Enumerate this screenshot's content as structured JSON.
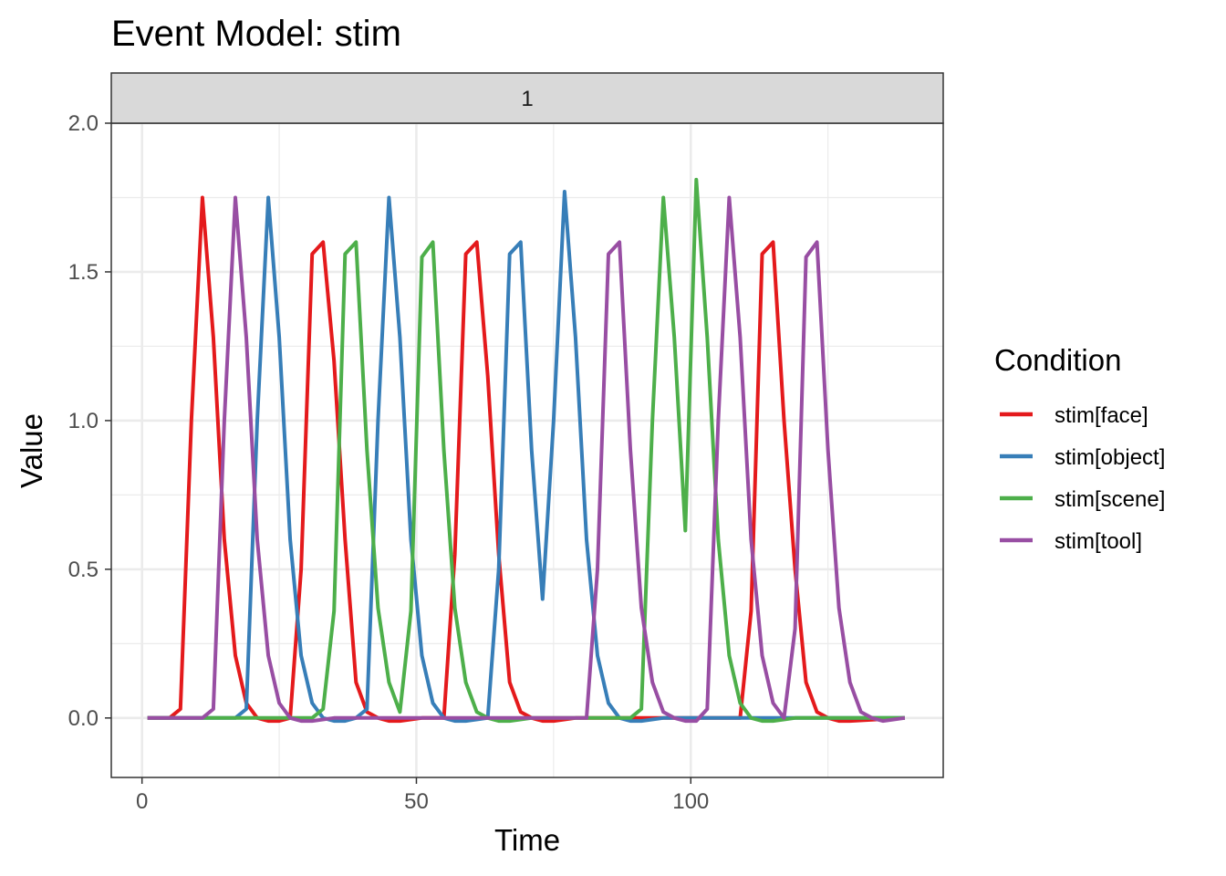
{
  "chart_data": {
    "type": "line",
    "title": "Event Model: stim",
    "facet_label": "1",
    "xlabel": "Time",
    "ylabel": "Value",
    "xlim": [
      -5.6,
      146
    ],
    "ylim": [
      -0.2,
      2.0
    ],
    "x_ticks": [
      0,
      50,
      100
    ],
    "x_tick_labels": [
      "0",
      "50",
      "100"
    ],
    "y_ticks": [
      0.0,
      0.5,
      1.0,
      1.5,
      2.0
    ],
    "y_tick_labels": [
      "0.0",
      "0.5",
      "1.0",
      "1.5",
      "2.0"
    ],
    "grid": true,
    "legend": {
      "title": "Condition",
      "position": "right"
    },
    "series": [
      {
        "name": "stim[face]",
        "color": "#E41A1C",
        "points": [
          [
            1,
            0
          ],
          [
            5,
            0
          ],
          [
            7,
            0.03
          ],
          [
            9,
            1.0
          ],
          [
            11,
            1.75
          ],
          [
            13,
            1.28
          ],
          [
            15,
            0.6
          ],
          [
            17,
            0.21
          ],
          [
            19,
            0.05
          ],
          [
            21,
            0
          ],
          [
            23,
            -0.01
          ],
          [
            25,
            -0.01
          ],
          [
            27,
            0
          ],
          [
            29,
            0.5
          ],
          [
            31,
            1.56
          ],
          [
            33,
            1.6
          ],
          [
            35,
            1.2
          ],
          [
            37,
            0.6
          ],
          [
            39,
            0.12
          ],
          [
            41,
            0.02
          ],
          [
            43,
            0
          ],
          [
            45,
            -0.01
          ],
          [
            47,
            -0.01
          ],
          [
            51,
            0
          ],
          [
            55,
            0
          ],
          [
            57,
            0.55
          ],
          [
            59,
            1.56
          ],
          [
            61,
            1.6
          ],
          [
            63,
            1.15
          ],
          [
            65,
            0.55
          ],
          [
            67,
            0.12
          ],
          [
            69,
            0.02
          ],
          [
            71,
            0
          ],
          [
            73,
            -0.01
          ],
          [
            75,
            -0.01
          ],
          [
            79,
            0
          ],
          [
            101,
            0
          ],
          [
            105,
            0
          ],
          [
            109,
            0
          ],
          [
            111,
            0.36
          ],
          [
            113,
            1.56
          ],
          [
            115,
            1.6
          ],
          [
            117,
            1.0
          ],
          [
            119,
            0.5
          ],
          [
            121,
            0.12
          ],
          [
            123,
            0.02
          ],
          [
            125,
            0
          ],
          [
            127,
            -0.01
          ],
          [
            129,
            -0.01
          ],
          [
            139,
            0
          ]
        ]
      },
      {
        "name": "stim[object]",
        "color": "#377EB8",
        "points": [
          [
            1,
            0
          ],
          [
            17,
            0
          ],
          [
            19,
            0.03
          ],
          [
            21,
            1.0
          ],
          [
            23,
            1.75
          ],
          [
            25,
            1.28
          ],
          [
            27,
            0.6
          ],
          [
            29,
            0.21
          ],
          [
            31,
            0.05
          ],
          [
            33,
            0
          ],
          [
            35,
            -0.01
          ],
          [
            37,
            -0.01
          ],
          [
            39,
            0
          ],
          [
            41,
            0.03
          ],
          [
            43,
            1.0
          ],
          [
            45,
            1.75
          ],
          [
            47,
            1.28
          ],
          [
            49,
            0.6
          ],
          [
            51,
            0.21
          ],
          [
            53,
            0.05
          ],
          [
            55,
            0
          ],
          [
            57,
            -0.01
          ],
          [
            59,
            -0.01
          ],
          [
            63,
            0
          ],
          [
            65,
            0.5
          ],
          [
            67,
            1.56
          ],
          [
            69,
            1.6
          ],
          [
            71,
            0.9
          ],
          [
            73,
            0.4
          ],
          [
            75,
            1.0
          ],
          [
            77,
            1.77
          ],
          [
            79,
            1.28
          ],
          [
            81,
            0.6
          ],
          [
            83,
            0.21
          ],
          [
            85,
            0.05
          ],
          [
            87,
            0
          ],
          [
            89,
            -0.01
          ],
          [
            91,
            -0.01
          ],
          [
            95,
            0
          ],
          [
            139,
            0
          ]
        ]
      },
      {
        "name": "stim[scene]",
        "color": "#4DAF4A",
        "points": [
          [
            1,
            0
          ],
          [
            31,
            0
          ],
          [
            33,
            0.03
          ],
          [
            35,
            0.36
          ],
          [
            37,
            1.56
          ],
          [
            39,
            1.6
          ],
          [
            41,
            0.9
          ],
          [
            43,
            0.37
          ],
          [
            45,
            0.12
          ],
          [
            47,
            0.02
          ],
          [
            49,
            0.36
          ],
          [
            51,
            1.55
          ],
          [
            53,
            1.6
          ],
          [
            55,
            0.9
          ],
          [
            57,
            0.37
          ],
          [
            59,
            0.12
          ],
          [
            61,
            0.02
          ],
          [
            63,
            0
          ],
          [
            65,
            -0.01
          ],
          [
            67,
            -0.01
          ],
          [
            71,
            0
          ],
          [
            89,
            0
          ],
          [
            91,
            0.03
          ],
          [
            93,
            1.0
          ],
          [
            95,
            1.75
          ],
          [
            97,
            1.28
          ],
          [
            99,
            0.63
          ],
          [
            101,
            1.81
          ],
          [
            103,
            1.28
          ],
          [
            105,
            0.6
          ],
          [
            107,
            0.21
          ],
          [
            109,
            0.05
          ],
          [
            111,
            0
          ],
          [
            113,
            -0.01
          ],
          [
            115,
            -0.01
          ],
          [
            119,
            0
          ],
          [
            139,
            0
          ]
        ]
      },
      {
        "name": "stim[tool]",
        "color": "#984EA3",
        "points": [
          [
            1,
            0
          ],
          [
            11,
            0
          ],
          [
            13,
            0.03
          ],
          [
            15,
            1.0
          ],
          [
            17,
            1.75
          ],
          [
            19,
            1.28
          ],
          [
            21,
            0.6
          ],
          [
            23,
            0.21
          ],
          [
            25,
            0.05
          ],
          [
            27,
            0
          ],
          [
            29,
            -0.01
          ],
          [
            31,
            -0.01
          ],
          [
            35,
            0
          ],
          [
            81,
            0
          ],
          [
            83,
            0.5
          ],
          [
            85,
            1.56
          ],
          [
            87,
            1.6
          ],
          [
            89,
            0.9
          ],
          [
            91,
            0.37
          ],
          [
            93,
            0.12
          ],
          [
            95,
            0.02
          ],
          [
            97,
            0
          ],
          [
            99,
            -0.01
          ],
          [
            101,
            -0.01
          ],
          [
            103,
            0.03
          ],
          [
            105,
            1.0
          ],
          [
            107,
            1.75
          ],
          [
            109,
            1.28
          ],
          [
            111,
            0.6
          ],
          [
            113,
            0.21
          ],
          [
            115,
            0.05
          ],
          [
            117,
            0
          ],
          [
            119,
            0.3
          ],
          [
            121,
            1.55
          ],
          [
            123,
            1.6
          ],
          [
            125,
            0.9
          ],
          [
            127,
            0.37
          ],
          [
            129,
            0.12
          ],
          [
            131,
            0.02
          ],
          [
            133,
            0
          ],
          [
            135,
            -0.01
          ],
          [
            139,
            0
          ]
        ]
      }
    ]
  }
}
